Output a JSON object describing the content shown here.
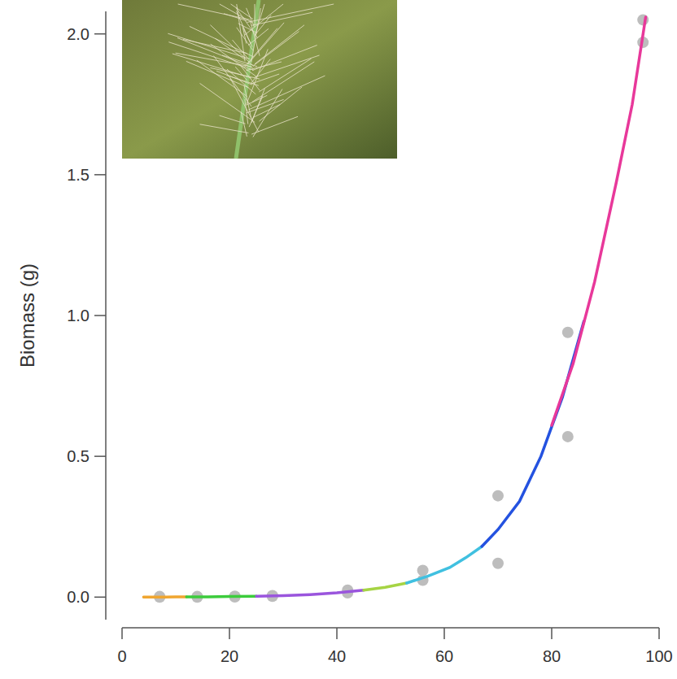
{
  "chart_data": {
    "type": "scatter",
    "y_label": "Biomass (g)",
    "xlim": [
      0,
      100
    ],
    "ylim": [
      -0.08,
      2.08
    ],
    "xticks": [
      0,
      20,
      40,
      60,
      80,
      100
    ],
    "yticks": [
      {
        "value": 0,
        "label": "0.0"
      },
      {
        "value": 0.5,
        "label": "0.5"
      },
      {
        "value": 1,
        "label": "1.0"
      },
      {
        "value": 1.5,
        "label": "1.5"
      },
      {
        "value": 2,
        "label": "2.0"
      }
    ],
    "grid": false,
    "series": [
      {
        "type": "scatter",
        "marker": "circle",
        "color": "#bdbdbd",
        "x": [
          7,
          7,
          14,
          14,
          21,
          21,
          28,
          28,
          42,
          42,
          56,
          56,
          70,
          70,
          83,
          83,
          97,
          97
        ],
        "values": [
          0,
          0.002,
          0,
          0.002,
          0.001,
          0.003,
          0.005,
          0.003,
          0.025,
          0.015,
          0.095,
          0.06,
          0.36,
          0.12,
          0.94,
          0.57,
          2.05,
          1.97
        ]
      },
      {
        "type": "line",
        "line_style": "solid",
        "color": "#f0a630",
        "x": [
          4,
          6,
          8,
          10,
          12
        ],
        "values": [
          0,
          0,
          0,
          0.001,
          0.001
        ]
      },
      {
        "type": "line",
        "line_style": "solid",
        "color": "#3ccc3c",
        "x": [
          12,
          16,
          20,
          25
        ],
        "values": [
          0.001,
          0.001,
          0.002,
          0.003
        ]
      },
      {
        "type": "line",
        "line_style": "solid",
        "color": "#9a55dd",
        "x": [
          25,
          30,
          35,
          40,
          45
        ],
        "values": [
          0.003,
          0.005,
          0.009,
          0.015,
          0.025
        ]
      },
      {
        "type": "line",
        "line_style": "solid",
        "color": "#a6d444",
        "x": [
          45,
          49,
          53
        ],
        "values": [
          0.025,
          0.035,
          0.05
        ]
      },
      {
        "type": "line",
        "line_style": "solid",
        "color": "#40c0e0",
        "x": [
          53,
          57,
          61,
          64,
          67
        ],
        "values": [
          0.05,
          0.075,
          0.105,
          0.14,
          0.18
        ]
      },
      {
        "type": "line",
        "line_style": "solid",
        "color": "#2452e0",
        "x": [
          67,
          70,
          74,
          78,
          82,
          86
        ],
        "values": [
          0.18,
          0.24,
          0.34,
          0.5,
          0.71,
          0.98
        ]
      },
      {
        "type": "line",
        "line_style": "solid",
        "color": "#e8389a",
        "x": [
          80,
          84,
          88,
          92,
          95,
          97.5
        ],
        "values": [
          0.61,
          0.83,
          1.12,
          1.47,
          1.75,
          2.06
        ]
      }
    ]
  }
}
